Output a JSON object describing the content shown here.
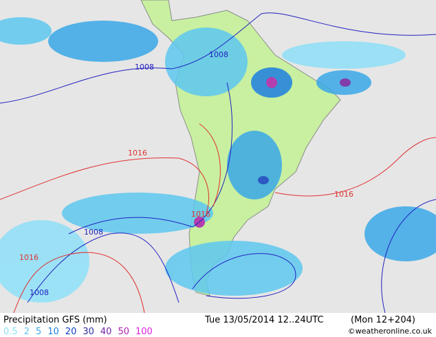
{
  "footer": {
    "title": "Precipitation GFS (mm)",
    "time": "Tue 13/05/2014 12..24UTC",
    "run": "(Mon 12+204)",
    "credit": "©weatheronline.co.uk"
  },
  "legend": [
    {
      "label": 0.5,
      "color": "#8ee0f8"
    },
    {
      "label": 2,
      "color": "#5ec8f0"
    },
    {
      "label": 5,
      "color": "#3aa8e8"
    },
    {
      "label": 10,
      "color": "#1e80e0"
    },
    {
      "label": 20,
      "color": "#1040c8"
    },
    {
      "label": 30,
      "color": "#3030a0"
    },
    {
      "label": 40,
      "color": "#7020a0"
    },
    {
      "label": 50,
      "color": "#b020b0"
    },
    {
      "label": 100,
      "color": "#e020e0"
    }
  ],
  "isobars": [
    {
      "label": "1008",
      "color": "#2020c0"
    },
    {
      "label": "1008",
      "color": "#2020c0"
    },
    {
      "label": "1008",
      "color": "#2020c0"
    },
    {
      "label": "1008",
      "color": "#2020c0"
    },
    {
      "label": "1016",
      "color": "#e03030"
    },
    {
      "label": "1016",
      "color": "#e03030"
    },
    {
      "label": "1016",
      "color": "#e03030"
    },
    {
      "label": "1016",
      "color": "#e03030"
    }
  ]
}
